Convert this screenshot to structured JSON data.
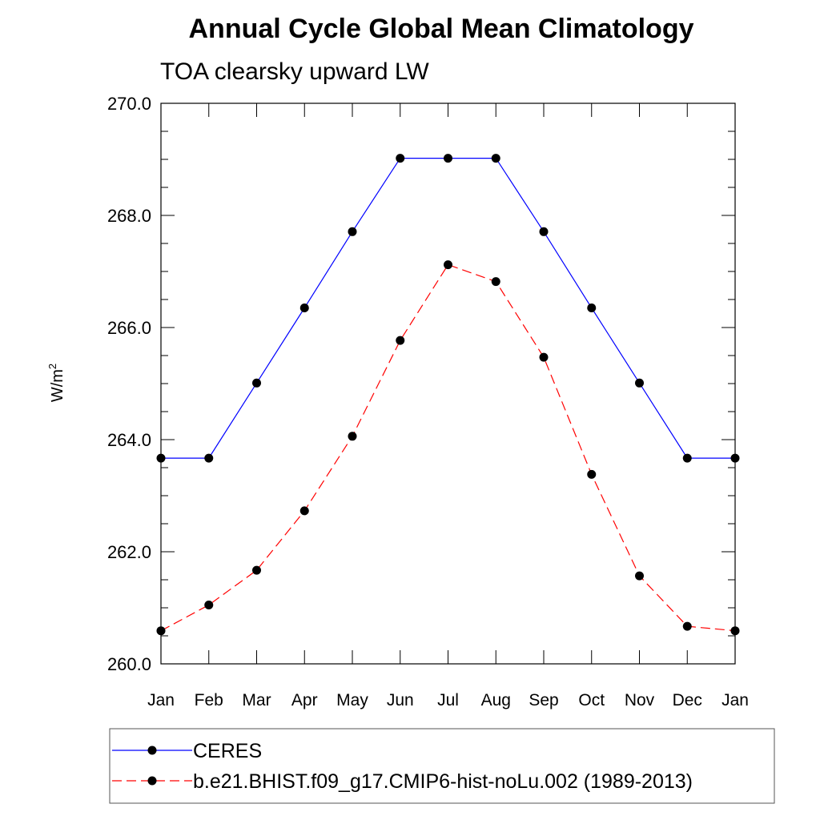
{
  "chart_data": {
    "type": "line",
    "title": "Annual Cycle Global Mean Climatology",
    "subtitle": "TOA clearsky upward LW",
    "ylabel_base": "W/m",
    "ylabel_sup": "2",
    "xlabel": "",
    "categories": [
      "Jan",
      "Feb",
      "Mar",
      "Apr",
      "May",
      "Jun",
      "Jul",
      "Aug",
      "Sep",
      "Oct",
      "Nov",
      "Dec",
      "Jan"
    ],
    "ylim": [
      260.0,
      270.0
    ],
    "yticks": [
      "260.0",
      "262.0",
      "264.0",
      "266.0",
      "268.0",
      "270.0"
    ],
    "series": [
      {
        "name": "CERES",
        "color": "#0000ff",
        "dash": "solid",
        "values": [
          263.67,
          263.67,
          265.01,
          266.35,
          267.71,
          269.02,
          269.02,
          269.02,
          267.71,
          266.35,
          265.01,
          263.67,
          263.67
        ]
      },
      {
        "name": "b.e21.BHIST.f09_g17.CMIP6-hist-noLu.002 (1989-2013)",
        "color": "#ff0000",
        "dash": "dashed",
        "values": [
          260.59,
          261.05,
          261.67,
          262.73,
          264.06,
          265.77,
          267.12,
          266.82,
          265.47,
          263.38,
          261.57,
          260.67,
          260.59
        ]
      }
    ],
    "legend_position": "bottom"
  }
}
